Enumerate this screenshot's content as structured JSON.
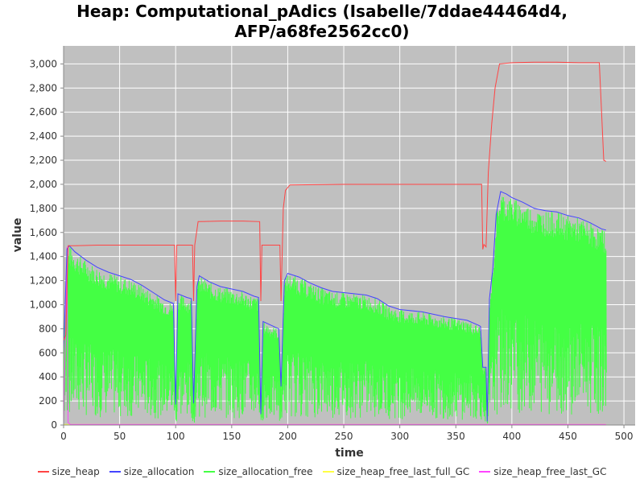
{
  "chart_data": {
    "type": "line",
    "title_lines": [
      "Heap: Computational_pAdics (Isabelle/7ddae44464d4,",
      "AFP/a68fe2562cc0)"
    ],
    "xlabel": "time",
    "ylabel": "value",
    "xlim": [
      0,
      510
    ],
    "ylim": [
      0,
      3150
    ],
    "xticks": [
      0,
      50,
      100,
      150,
      200,
      250,
      300,
      350,
      400,
      450,
      500
    ],
    "yticks": [
      0,
      200,
      400,
      600,
      800,
      1000,
      1200,
      1400,
      1600,
      1800,
      2000,
      2200,
      2400,
      2600,
      2800,
      3000
    ],
    "xtick_labels": [
      "0",
      "50",
      "100",
      "150",
      "200",
      "250",
      "300",
      "350",
      "400",
      "450",
      "500"
    ],
    "ytick_labels": [
      "0",
      "200",
      "400",
      "600",
      "800",
      "1,000",
      "1,200",
      "1,400",
      "1,600",
      "1,800",
      "2,000",
      "2,200",
      "2,400",
      "2,600",
      "2,800",
      "3,000"
    ],
    "grid": true,
    "background": "#c0c0c0",
    "legend_position": "bottom",
    "series": [
      {
        "name": "size_heap",
        "color": "#ff4444",
        "points": [
          [
            0,
            700
          ],
          [
            2,
            750
          ],
          [
            4,
            1490
          ],
          [
            10,
            1490
          ],
          [
            30,
            1495
          ],
          [
            60,
            1495
          ],
          [
            90,
            1495
          ],
          [
            99,
            1495
          ],
          [
            100,
            1030
          ],
          [
            101,
            1495
          ],
          [
            115,
            1495
          ],
          [
            116,
            1030
          ],
          [
            117,
            1495
          ],
          [
            120,
            1690
          ],
          [
            140,
            1695
          ],
          [
            160,
            1695
          ],
          [
            175,
            1690
          ],
          [
            176,
            1030
          ],
          [
            177,
            1495
          ],
          [
            193,
            1495
          ],
          [
            194,
            1030
          ],
          [
            196,
            1800
          ],
          [
            198,
            1950
          ],
          [
            202,
            1995
          ],
          [
            250,
            2000
          ],
          [
            300,
            2000
          ],
          [
            340,
            2000
          ],
          [
            373,
            2000
          ],
          [
            374,
            1460
          ],
          [
            375,
            1500
          ],
          [
            377,
            1480
          ],
          [
            379,
            2100
          ],
          [
            382,
            2500
          ],
          [
            385,
            2800
          ],
          [
            389,
            3000
          ],
          [
            400,
            3010
          ],
          [
            420,
            3015
          ],
          [
            440,
            3015
          ],
          [
            460,
            3010
          ],
          [
            478,
            3010
          ],
          [
            482,
            2200
          ],
          [
            484,
            2190
          ]
        ]
      },
      {
        "name": "size_allocation",
        "color": "#4444ff",
        "points": [
          [
            0,
            600
          ],
          [
            3,
            1460
          ],
          [
            5,
            1490
          ],
          [
            10,
            1440
          ],
          [
            20,
            1370
          ],
          [
            30,
            1310
          ],
          [
            40,
            1270
          ],
          [
            50,
            1240
          ],
          [
            60,
            1210
          ],
          [
            70,
            1160
          ],
          [
            80,
            1100
          ],
          [
            90,
            1040
          ],
          [
            98,
            1010
          ],
          [
            100,
            170
          ],
          [
            102,
            1090
          ],
          [
            110,
            1060
          ],
          [
            114,
            1050
          ],
          [
            116,
            180
          ],
          [
            119,
            1150
          ],
          [
            121,
            1240
          ],
          [
            130,
            1190
          ],
          [
            140,
            1150
          ],
          [
            150,
            1130
          ],
          [
            160,
            1110
          ],
          [
            170,
            1070
          ],
          [
            174,
            1060
          ],
          [
            176,
            90
          ],
          [
            178,
            860
          ],
          [
            185,
            830
          ],
          [
            192,
            800
          ],
          [
            194,
            320
          ],
          [
            197,
            1200
          ],
          [
            200,
            1260
          ],
          [
            210,
            1230
          ],
          [
            220,
            1180
          ],
          [
            230,
            1140
          ],
          [
            240,
            1110
          ],
          [
            250,
            1100
          ],
          [
            270,
            1080
          ],
          [
            280,
            1050
          ],
          [
            290,
            990
          ],
          [
            300,
            960
          ],
          [
            320,
            940
          ],
          [
            340,
            900
          ],
          [
            360,
            870
          ],
          [
            370,
            830
          ],
          [
            372,
            820
          ],
          [
            374,
            480
          ],
          [
            377,
            480
          ],
          [
            378,
            30
          ],
          [
            380,
            1050
          ],
          [
            383,
            1300
          ],
          [
            386,
            1750
          ],
          [
            390,
            1940
          ],
          [
            395,
            1920
          ],
          [
            400,
            1890
          ],
          [
            410,
            1850
          ],
          [
            420,
            1800
          ],
          [
            430,
            1780
          ],
          [
            440,
            1770
          ],
          [
            450,
            1740
          ],
          [
            460,
            1720
          ],
          [
            470,
            1680
          ],
          [
            480,
            1630
          ],
          [
            484,
            1620
          ]
        ]
      },
      {
        "name": "size_allocation_free",
        "color": "#44ff44",
        "points": []
      },
      {
        "name": "size_heap_free_last_full_GC",
        "color": "#ffff44",
        "points": [
          [
            0,
            5
          ],
          [
            484,
            5
          ]
        ]
      },
      {
        "name": "size_heap_free_last_GC",
        "color": "#ff44ff",
        "points": [
          [
            0,
            5
          ],
          [
            2,
            900
          ],
          [
            3,
            1480
          ],
          [
            4,
            20
          ],
          [
            6,
            5
          ],
          [
            484,
            5
          ]
        ]
      }
    ]
  }
}
